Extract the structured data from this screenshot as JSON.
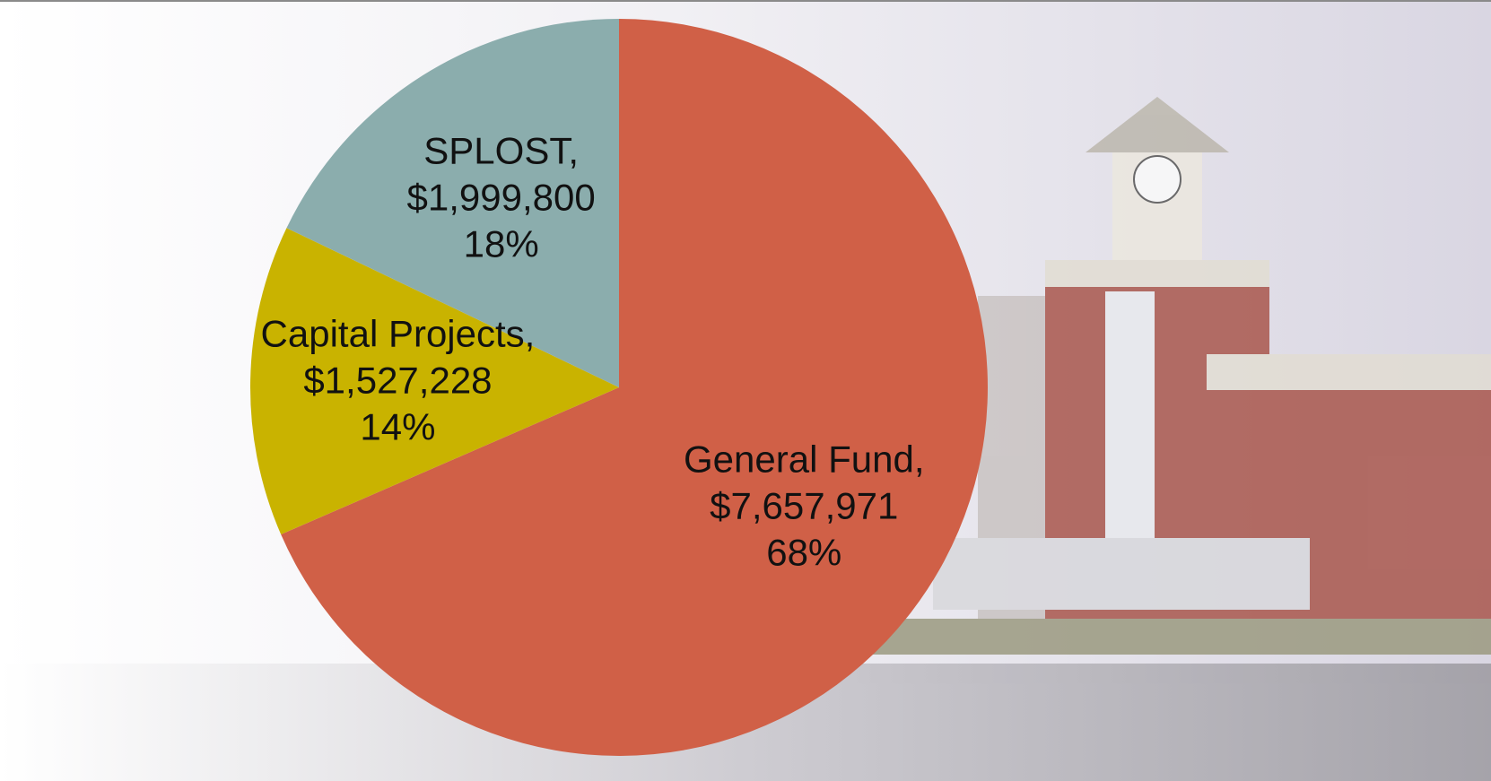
{
  "chart_data": {
    "type": "pie",
    "categories": [
      "General Fund,",
      "Capital Projects,",
      "SPLOST,"
    ],
    "values": [
      7657971,
      1527228,
      1999800
    ],
    "value_labels": [
      "$7,657,971",
      "$1,527,228",
      "$1,999,800"
    ],
    "percents": [
      68,
      14,
      18
    ],
    "percent_labels": [
      "68%",
      "14%",
      "18%"
    ],
    "colors": [
      "#D06047",
      "#C9B300",
      "#8BADAD"
    ],
    "start_angle": 0,
    "direction": "clockwise"
  }
}
